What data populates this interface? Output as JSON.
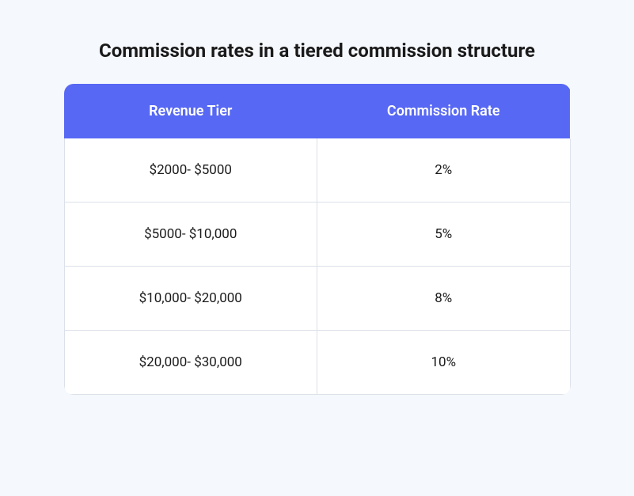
{
  "title": "Commission rates in a tiered commission structure",
  "table": {
    "type": "table",
    "header_bg_color": "#5768f4",
    "header_text_color": "#ffffff",
    "body_bg_color": "#ffffff",
    "border_color": "#dce0e8",
    "page_bg_color": "#f5f8fc",
    "title_fontsize": 24,
    "header_fontsize": 18,
    "cell_fontsize": 17,
    "border_radius": 12,
    "columns": [
      "Revenue Tier",
      "Commission Rate"
    ],
    "rows": [
      [
        "$2000- $5000",
        "2%"
      ],
      [
        "$5000- $10,000",
        "5%"
      ],
      [
        "$10,000- $20,000",
        "8%"
      ],
      [
        "$20,000- $30,000",
        "10%"
      ]
    ]
  }
}
